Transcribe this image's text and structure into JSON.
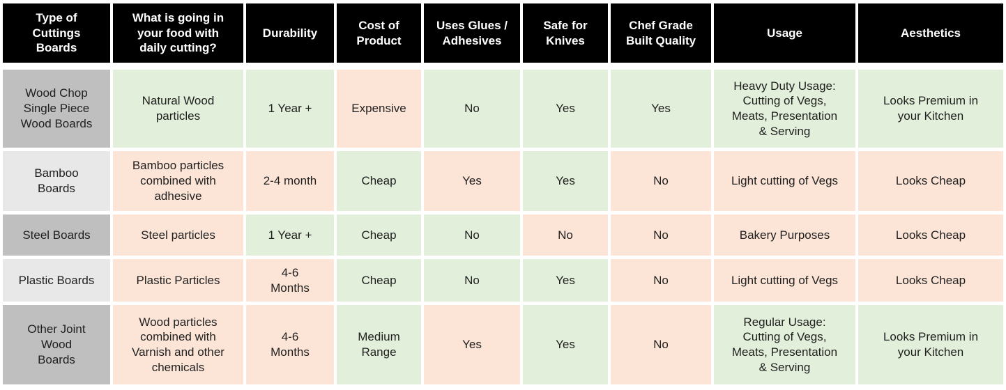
{
  "table": {
    "columns": [
      {
        "id": "type",
        "label": "Type of\nCuttings\nBoards"
      },
      {
        "id": "food",
        "label": "What is going in\nyour food with\ndaily cutting?"
      },
      {
        "id": "durability",
        "label": "Durability"
      },
      {
        "id": "cost",
        "label": "Cost of\nProduct"
      },
      {
        "id": "glues",
        "label": "Uses Glues /\nAdhesives"
      },
      {
        "id": "knives",
        "label": "Safe for\nKnives"
      },
      {
        "id": "chef-grade",
        "label": "Chef Grade\nBuilt Quality"
      },
      {
        "id": "usage",
        "label": "Usage"
      },
      {
        "id": "aesthetics",
        "label": "Aesthetics"
      }
    ],
    "rows": [
      {
        "id": "wood-chop-single-piece",
        "name": "Wood Chop\nSingle Piece\nWood Boards",
        "shade": "dark",
        "cells": [
          {
            "text": "Natural Wood\nparticles",
            "tone": "green"
          },
          {
            "text": "1 Year +",
            "tone": "green"
          },
          {
            "text": "Expensive",
            "tone": "peach"
          },
          {
            "text": "No",
            "tone": "green"
          },
          {
            "text": "Yes",
            "tone": "green"
          },
          {
            "text": "Yes",
            "tone": "green"
          },
          {
            "text": "Heavy Duty Usage:\nCutting of Vegs,\nMeats, Presentation\n& Serving",
            "tone": "green"
          },
          {
            "text": "Looks Premium in\nyour Kitchen",
            "tone": "green"
          }
        ]
      },
      {
        "id": "bamboo",
        "name": "Bamboo\nBoards",
        "shade": "light",
        "cells": [
          {
            "text": "Bamboo particles\ncombined with\nadhesive",
            "tone": "peach"
          },
          {
            "text": "2-4 month",
            "tone": "peach"
          },
          {
            "text": "Cheap",
            "tone": "green"
          },
          {
            "text": "Yes",
            "tone": "peach"
          },
          {
            "text": "Yes",
            "tone": "green"
          },
          {
            "text": "No",
            "tone": "peach"
          },
          {
            "text": "Light cutting of Vegs",
            "tone": "peach"
          },
          {
            "text": "Looks Cheap",
            "tone": "peach"
          }
        ]
      },
      {
        "id": "steel",
        "name": "Steel Boards",
        "shade": "dark",
        "cells": [
          {
            "text": "Steel particles",
            "tone": "peach"
          },
          {
            "text": "1 Year +",
            "tone": "green"
          },
          {
            "text": "Cheap",
            "tone": "green"
          },
          {
            "text": "No",
            "tone": "green"
          },
          {
            "text": "No",
            "tone": "peach"
          },
          {
            "text": "No",
            "tone": "peach"
          },
          {
            "text": "Bakery Purposes",
            "tone": "peach"
          },
          {
            "text": "Looks Cheap",
            "tone": "peach"
          }
        ]
      },
      {
        "id": "plastic",
        "name": "Plastic Boards",
        "shade": "light",
        "cells": [
          {
            "text": "Plastic Particles",
            "tone": "peach"
          },
          {
            "text": "4-6\nMonths",
            "tone": "peach"
          },
          {
            "text": "Cheap",
            "tone": "green"
          },
          {
            "text": "No",
            "tone": "green"
          },
          {
            "text": "Yes",
            "tone": "green"
          },
          {
            "text": "No",
            "tone": "peach"
          },
          {
            "text": "Light cutting of Vegs",
            "tone": "peach"
          },
          {
            "text": "Looks Cheap",
            "tone": "peach"
          }
        ]
      },
      {
        "id": "other-joint-wood",
        "name": "Other Joint\nWood\nBoards",
        "shade": "dark",
        "cells": [
          {
            "text": "Wood particles\ncombined with\nVarnish and other\nchemicals",
            "tone": "peach"
          },
          {
            "text": "4-6\nMonths",
            "tone": "peach"
          },
          {
            "text": "Medium\nRange",
            "tone": "green"
          },
          {
            "text": "Yes",
            "tone": "peach"
          },
          {
            "text": "Yes",
            "tone": "green"
          },
          {
            "text": "No",
            "tone": "peach"
          },
          {
            "text": "Regular Usage:\nCutting of Vegs,\nMeats, Presentation\n& Serving",
            "tone": "green"
          },
          {
            "text": "Looks Premium in\nyour Kitchen",
            "tone": "green"
          }
        ]
      }
    ],
    "colors": {
      "header_bg": "#000000",
      "header_text": "#ffffff",
      "positive_bg": "#e2efda",
      "negative_bg": "#fce4d6",
      "row_label_dark": "#bfbfbf",
      "row_label_light": "#e8e8e8",
      "body_text": "#1f1f1f",
      "grid_gap": "#ffffff"
    }
  },
  "chart_data": {
    "type": "table",
    "title": "Cutting boards comparison",
    "columns": [
      "Type of Cuttings Boards",
      "What is going in your food with daily cutting?",
      "Durability",
      "Cost of Product",
      "Uses Glues / Adhesives",
      "Safe for Knives",
      "Chef Grade Built Quality",
      "Usage",
      "Aesthetics"
    ],
    "rows": [
      [
        "Wood Chop Single Piece Wood Boards",
        "Natural Wood particles",
        "1 Year +",
        "Expensive",
        "No",
        "Yes",
        "Yes",
        "Heavy Duty Usage: Cutting of Vegs, Meats, Presentation & Serving",
        "Looks Premium in your Kitchen"
      ],
      [
        "Bamboo Boards",
        "Bamboo particles combined with adhesive",
        "2-4 month",
        "Cheap",
        "Yes",
        "Yes",
        "No",
        "Light cutting of Vegs",
        "Looks Cheap"
      ],
      [
        "Steel Boards",
        "Steel particles",
        "1 Year +",
        "Cheap",
        "No",
        "No",
        "No",
        "Bakery Purposes",
        "Looks Cheap"
      ],
      [
        "Plastic Boards",
        "Plastic Particles",
        "4-6 Months",
        "Cheap",
        "No",
        "Yes",
        "No",
        "Light cutting of Vegs",
        "Looks Cheap"
      ],
      [
        "Other Joint Wood Boards",
        "Wood particles combined with Varnish and other chemicals",
        "4-6 Months",
        "Medium Range",
        "Yes",
        "Yes",
        "No",
        "Regular Usage: Cutting of Vegs, Meats, Presentation & Serving",
        "Looks Premium in your Kitchen"
      ]
    ],
    "cell_highlight_colors": {
      "green": "#e2efda",
      "peach": "#fce4d6"
    },
    "cell_highlight_meaning": {
      "green": "favorable attribute",
      "peach": "unfavorable attribute"
    },
    "layout": {
      "header_style": "black boxes, white bold text",
      "row_label_shades_alternate": [
        "#bfbfbf",
        "#e8e8e8"
      ],
      "grid": "white gaps between cells"
    }
  }
}
